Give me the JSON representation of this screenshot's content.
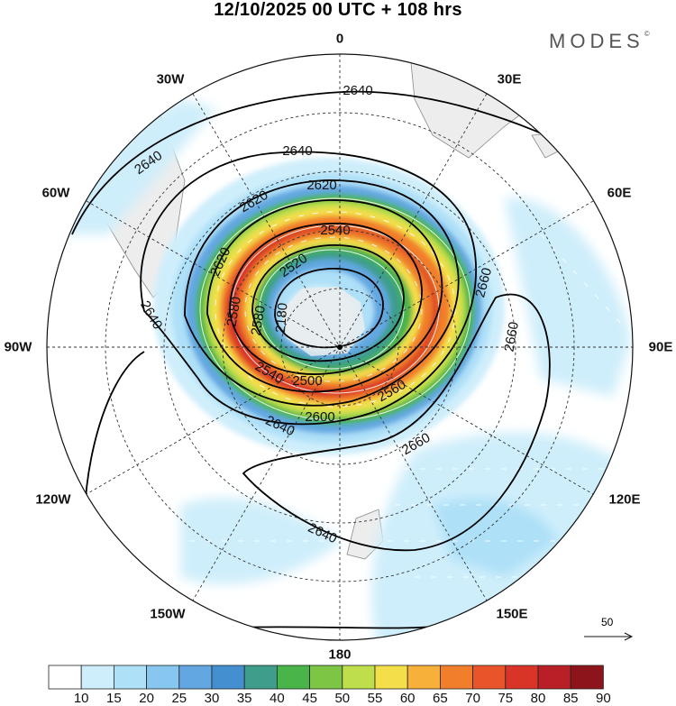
{
  "title": "12/10/2025  00 UTC  + 108 hrs",
  "brand": "MODES",
  "brand_mark": "©",
  "map": {
    "projection": "south polar stereographic",
    "longitude_labels": [
      "0",
      "30E",
      "60E",
      "90E",
      "120E",
      "150E",
      "180",
      "150W",
      "120W",
      "90W",
      "60W",
      "30W"
    ],
    "variable_shaded": "wind speed",
    "variable_contour": "geopotential height",
    "contour_labels": [
      "2640",
      "2640",
      "2640",
      "2620",
      "2620",
      "2620",
      "2540",
      "2520",
      "2580",
      "2580",
      "2180",
      "2500",
      "2560",
      "2540",
      "2600",
      "2640",
      "2660",
      "2660",
      "2660",
      "2640",
      "2640"
    ],
    "reference_vector": "50"
  },
  "colorbar": {
    "labels": [
      "10",
      "15",
      "20",
      "25",
      "30",
      "35",
      "40",
      "45",
      "50",
      "55",
      "60",
      "65",
      "70",
      "75",
      "80",
      "85",
      "90"
    ],
    "colors": [
      "#ffffff",
      "#cfeefb",
      "#aee0f8",
      "#86c6ef",
      "#62a7e1",
      "#438fcf",
      "#3e9e8b",
      "#48b449",
      "#7cc545",
      "#bede4c",
      "#f4df4b",
      "#f7b13b",
      "#f17e2b",
      "#e9542b",
      "#d83528",
      "#b81f26",
      "#8e141b"
    ]
  },
  "colors": {
    "land": "#ededed",
    "contour": "#000000",
    "grid": "#333333"
  }
}
